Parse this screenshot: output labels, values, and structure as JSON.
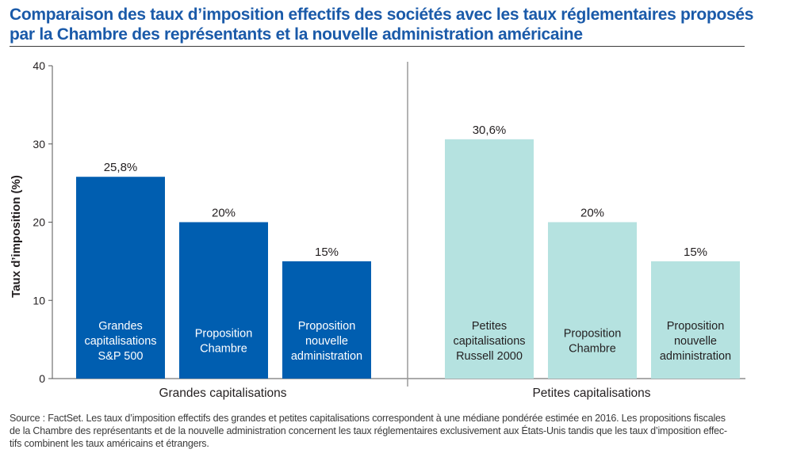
{
  "header": {
    "title_line1": "Comparaison des taux d’imposition effectifs des sociétés avec les taux réglementaires proposés",
    "title_line2": "par la Chambre des représentants et la nouvelle administration américaine"
  },
  "footer": {
    "source_line1": "Source : FactSet.  Les taux d’imposition effectifs des grandes et petites capitalisations correspondent à une médiane pondérée estimée en 2016. Les propositions fiscales",
    "source_line2": "de la Chambre des représentants et de la nouvelle administration concernent les taux réglementaires exclusivement aux États-Unis tandis que les taux d’imposition effec-",
    "source_line3": "tifs combinent les taux américains et étrangers."
  },
  "colors": {
    "large_cap": "#005eb0",
    "small_cap": "#b5e2e0",
    "title": "#1a5aa9"
  },
  "chart_data": {
    "type": "bar",
    "title": "Comparaison des taux d’imposition effectifs des sociétés avec les taux réglementaires proposés par la Chambre des représentants et la nouvelle administration américaine",
    "ylabel": "Taux d’imposition (%)",
    "ylim": [
      0,
      40
    ],
    "yticks": [
      "0",
      "10",
      "20",
      "30",
      "40"
    ],
    "grid": false,
    "groups": [
      {
        "name": "Grandes capitalisations",
        "color": "#005eb0",
        "label_color": "#ffffff",
        "bars": [
          {
            "label": [
              "Grandes",
              "capitalisations",
              "S&P 500"
            ],
            "value": 25.8,
            "value_label": "25,8%"
          },
          {
            "label": [
              "Proposition",
              "Chambre"
            ],
            "value": 20,
            "value_label": "20%"
          },
          {
            "label": [
              "Proposition",
              "nouvelle",
              "administration"
            ],
            "value": 15,
            "value_label": "15%"
          }
        ]
      },
      {
        "name": "Petites capitalisations",
        "color": "#b5e2e0",
        "label_color": "#231f20",
        "bars": [
          {
            "label": [
              "Petites",
              "capitalisations",
              "Russell 2000"
            ],
            "value": 30.6,
            "value_label": "30,6%"
          },
          {
            "label": [
              "Proposition",
              "Chambre"
            ],
            "value": 20,
            "value_label": "20%"
          },
          {
            "label": [
              "Proposition",
              "nouvelle",
              "administration"
            ],
            "value": 15,
            "value_label": "15%"
          }
        ]
      }
    ]
  }
}
